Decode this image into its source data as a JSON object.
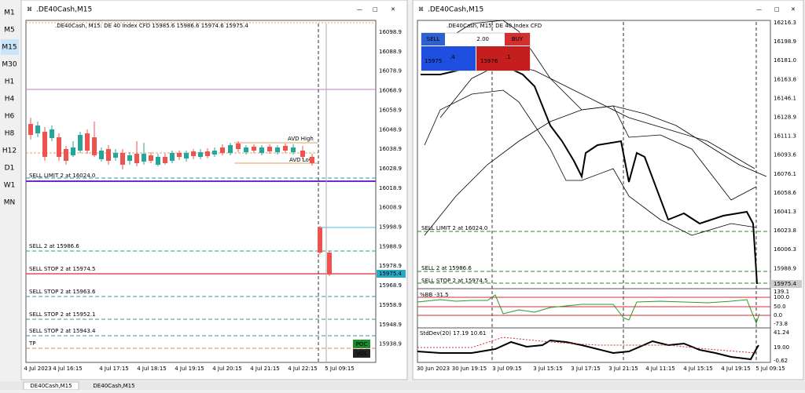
{
  "timeframes": [
    "M1",
    "M5",
    "M15",
    "M30",
    "H1",
    "H4",
    "H6",
    "H8",
    "H12",
    "D1",
    "W1",
    "MN"
  ],
  "left_window": {
    "title": ".DE40Cash,M15",
    "header": ".DE40Cash, M15:  DE 40 Index CFD  15985.6 15986.6 15974.6 15975.4",
    "price_labels": [
      "16098.9",
      "16088.9",
      "16078.9",
      "16068.9",
      "16058.9",
      "16048.9",
      "16038.9",
      "16028.9",
      "16018.9",
      "16008.9",
      "15998.9",
      "15988.9",
      "15978.9",
      "15968.9",
      "15958.9",
      "15948.9",
      "15938.9"
    ],
    "current_price": "15975.4",
    "order_lines": [
      "SELL LIMIT 2 at 16024.0",
      "SELL 2 at 15986.6",
      "SELL STOP 2 at 15974.5",
      "SELL STOP 2 at 15963.6",
      "SELL STOP 2 at 15952.1",
      "SELL STOP 2 at 15943.4",
      "TP"
    ],
    "annotations": [
      "AVD High",
      "AVD Low"
    ],
    "buttons": [
      "POC",
      "VOL"
    ],
    "x_labels": [
      "4 Jul 2023",
      "4 Jul 16:15",
      "4 Jul 17:15",
      "4 Jul 18:15",
      "4 Jul 19:15",
      "4 Jul 20:15",
      "4 Jul 21:15",
      "4 Jul 22:15",
      "5 Jul 09:15"
    ]
  },
  "right_window": {
    "title": ".DE40Cash,M15",
    "header": ".DE40Cash, M15:  DE 40 Index CFD",
    "trade_panel": {
      "sell": "SELL",
      "lot": "2.00",
      "buy": "BUY",
      "bid_main": "15975",
      "bid_frac": ".4",
      "ask_main": "15976",
      "ask_frac": ".1"
    },
    "price_labels": [
      "16216.3",
      "16198.9",
      "16181.0",
      "16163.8",
      "16146.1",
      "16128.9",
      "16111.3",
      "16093.6",
      "16076.1",
      "16058.6",
      "16041.3",
      "16023.8",
      "16006.3",
      "15988.9"
    ],
    "current_price": "15975.4",
    "order_lines": [
      "SELL LIMIT 2 at 16024.0",
      "SELL 2 at 15986.6",
      "SELL STOP 2 at 15974.5"
    ],
    "indicator_1": {
      "label": "%BB -31.5",
      "axis": [
        "139.1",
        "100.0",
        "50.0",
        "0.0",
        "-73.8"
      ]
    },
    "indicator_2": {
      "label": "StdDev(20) 17.19 10.61",
      "axis": [
        "41.24",
        "19.00",
        "-0.62"
      ]
    },
    "x_labels": [
      "30 Jun 2023",
      "30 Jun 19:15",
      "3 Jul 09:15",
      "3 Jul 15:15",
      "3 Jul 17:15",
      "3 Jul 21:15",
      "4 Jul 11:15",
      "4 Jul 15:15",
      "4 Jul 19:15",
      "5 Jul 09:15"
    ]
  },
  "tabs": [
    "DE40Cash,M15",
    "DE40Cash,M15"
  ]
}
